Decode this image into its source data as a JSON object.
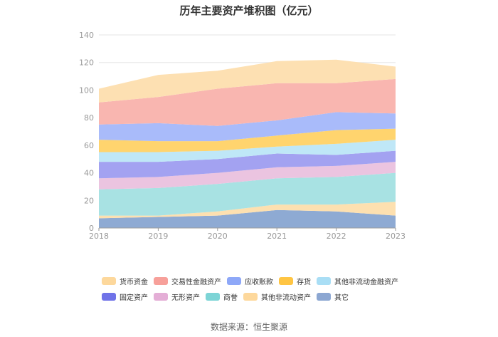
{
  "chart_data": {
    "type": "area",
    "stacked": true,
    "title": "历年主要资产堆积图（亿元）",
    "x": [
      "2018",
      "2019",
      "2020",
      "2021",
      "2022",
      "2023"
    ],
    "ylim": [
      0,
      140
    ],
    "yticks": [
      0,
      20,
      40,
      60,
      80,
      100,
      120,
      140
    ],
    "xlabel": "",
    "ylabel": "",
    "grid": true,
    "legend_position": "bottom",
    "series": [
      {
        "name": "其它",
        "color": "#8eaad3",
        "values": [
          7,
          8,
          9,
          13,
          12,
          9
        ]
      },
      {
        "name": "其他非流动资产",
        "color": "#fde0b0",
        "values": [
          2,
          1,
          3,
          4,
          5,
          10
        ]
      },
      {
        "name": "商誉",
        "color": "#a8e2e3",
        "values": [
          19,
          20,
          20,
          19,
          20,
          21
        ]
      },
      {
        "name": "无形资产",
        "color": "#ebc4e0",
        "values": [
          8,
          8,
          8,
          8,
          8,
          8
        ]
      },
      {
        "name": "固定资产",
        "color": "#a3a2f1",
        "values": [
          12,
          11,
          10,
          10,
          8,
          8
        ]
      },
      {
        "name": "其他非流动金融资产",
        "color": "#bfe7f7",
        "values": [
          7,
          7,
          6,
          5,
          8,
          8
        ]
      },
      {
        "name": "存货",
        "color": "#ffd46e",
        "values": [
          9,
          8,
          7,
          8,
          10,
          8
        ]
      },
      {
        "name": "应收账款",
        "color": "#a9bbfa",
        "values": [
          11,
          13,
          11,
          11,
          13,
          11
        ]
      },
      {
        "name": "交易性金融资产",
        "color": "#f9b6b0",
        "values": [
          16,
          19,
          27,
          27,
          21,
          25
        ]
      },
      {
        "name": "货币资金",
        "color": "#fde0b2",
        "values": [
          10,
          16,
          13,
          16,
          17,
          9
        ]
      }
    ]
  },
  "legend": {
    "rows": [
      [
        {
          "label": "货币资金",
          "color": "#fdd89c"
        },
        {
          "label": "交易性金融资产",
          "color": "#f7a09a"
        },
        {
          "label": "应收账款",
          "color": "#8ea8f8"
        },
        {
          "label": "存货",
          "color": "#ffc543"
        },
        {
          "label": "其他非流动金融资产",
          "color": "#a9def5"
        }
      ],
      [
        {
          "label": "固定资产",
          "color": "#7073e8"
        },
        {
          "label": "无形资产",
          "color": "#e4aed6"
        },
        {
          "label": "商誉",
          "color": "#7dd4d6"
        },
        {
          "label": "其他非流动资产",
          "color": "#fdd89c"
        },
        {
          "label": "其它",
          "color": "#8ca7d2"
        }
      ]
    ]
  },
  "source_text": "数据来源：恒生聚源"
}
